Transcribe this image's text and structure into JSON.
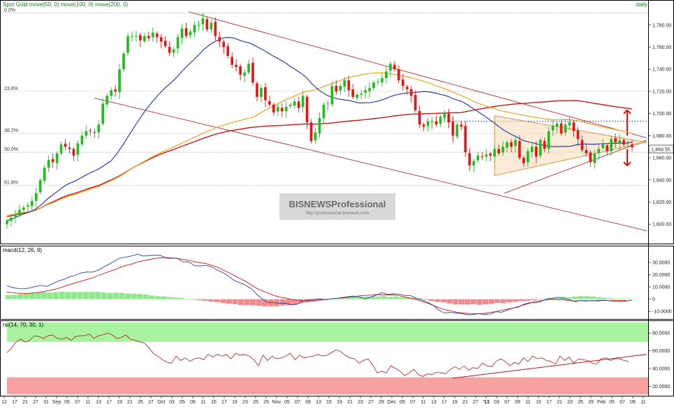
{
  "panels": {
    "price": {
      "title": "Spot Gold move(50, 0) move(100, 0) move(200, 0)",
      "period": "daily"
    },
    "macd": {
      "title": "macd(12, 26, 9)"
    },
    "rsi": {
      "title": "rsi(14, 70, 30, 1)"
    }
  },
  "watermark": {
    "title": "BISNEWSProfessional",
    "url": "http://professional.bisnews.com"
  },
  "last_price_label": "1,669.55",
  "colors": {
    "up": "#22bb22",
    "down": "#e01818",
    "ma50": "#2a3f9e",
    "ma100": "#e8a420",
    "ma200": "#c81818",
    "macd_line": "#2a3f9e",
    "signal_line": "#c81818",
    "hist_pos": "#8ee88e",
    "hist_neg": "#f08a8a",
    "rsi_line": "#b01818",
    "rsi_ob": "#a8f2a0",
    "rsi_os": "#f7a0a0",
    "channel": "#b03030",
    "triangle_fill": "#f5d9b8"
  },
  "chart_data": [
    {
      "type": "candlestick",
      "title": "Spot Gold move(50, 0) move(100, 0) move(200, 0)",
      "period": "daily",
      "ylim": [
        1585,
        1795
      ],
      "y_ticks": [
        "1,600.00",
        "1,620.00",
        "1,640.00",
        "1,660.00",
        "1,680.00",
        "1,700.00",
        "1,720.00",
        "1,740.00",
        "1,760.00",
        "1,780.00"
      ],
      "last_price": 1669.55,
      "fibonacci": [
        {
          "label": "0.0%",
          "value": 1791
        },
        {
          "label": "23.6%",
          "value": 1720
        },
        {
          "label": "38.2%",
          "value": 1682
        },
        {
          "label": "50.0%",
          "value": 1665
        },
        {
          "label": "61.8%",
          "value": 1635
        }
      ],
      "x_ticks": [
        "12",
        "17",
        "21",
        "27",
        "31",
        "Sep",
        "05",
        "07",
        "11",
        "13",
        "17",
        "19",
        "21",
        "25",
        "27",
        "Oct",
        "03",
        "05",
        "09",
        "11",
        "15",
        "17",
        "19",
        "23",
        "25",
        "29",
        "Nov",
        "05",
        "07",
        "09",
        "13",
        "15",
        "19",
        "21",
        "23",
        "27",
        "29",
        "Dec",
        "05",
        "07",
        "11",
        "13",
        "17",
        "19",
        "21",
        "27",
        "'13",
        "03",
        "07",
        "09",
        "11",
        "15",
        "17",
        "21",
        "23",
        "25",
        "29",
        "Feb",
        "05",
        "07",
        "09",
        "11"
      ],
      "close": [
        1603,
        1606,
        1609,
        1613,
        1615,
        1617,
        1621,
        1628,
        1640,
        1651,
        1658,
        1656,
        1664,
        1672,
        1670,
        1668,
        1662,
        1673,
        1680,
        1684,
        1684,
        1683,
        1690,
        1709,
        1716,
        1721,
        1720,
        1740,
        1754,
        1770,
        1770,
        1770,
        1766,
        1770,
        1768,
        1773,
        1769,
        1765,
        1761,
        1755,
        1758,
        1769,
        1777,
        1770,
        1774,
        1780,
        1780,
        1786,
        1776,
        1782,
        1770,
        1765,
        1760,
        1752,
        1744,
        1742,
        1735,
        1737,
        1745,
        1728,
        1715,
        1723,
        1712,
        1708,
        1701,
        1706,
        1702,
        1706,
        1708,
        1711,
        1705,
        1716,
        1692,
        1675,
        1683,
        1696,
        1708,
        1709,
        1725,
        1720,
        1725,
        1730,
        1721,
        1715,
        1717,
        1718,
        1721,
        1723,
        1728,
        1729,
        1732,
        1738,
        1745,
        1740,
        1730,
        1725,
        1722,
        1716,
        1703,
        1690,
        1688,
        1693,
        1693,
        1690,
        1697,
        1700,
        1692,
        1680,
        1690,
        1688,
        1665,
        1653,
        1657,
        1662,
        1661,
        1663,
        1662,
        1668,
        1664,
        1670,
        1674,
        1670,
        1676,
        1660,
        1655,
        1666,
        1670,
        1661,
        1676,
        1668,
        1684,
        1689,
        1691,
        1682,
        1690,
        1692,
        1684,
        1677,
        1667,
        1664,
        1656,
        1664,
        1668,
        1672,
        1666,
        1677,
        1674,
        1676,
        1672,
        1673,
        1669.55
      ]
    },
    {
      "type": "line",
      "title": "macd(12, 26, 9)",
      "y_ticks": [
        "30.0000",
        "20.0000",
        "10.0000",
        "0",
        "-10.0000"
      ],
      "ylim": [
        -15,
        38
      ],
      "series": [
        {
          "values": [
            10.9,
            9.5,
            8.7,
            8.4,
            9.2,
            10.4,
            11.3,
            10.5,
            12.5,
            14.7,
            16.2,
            18.2,
            19.5,
            21.4,
            22.2,
            22.1,
            23.6,
            26.2,
            28.7,
            31.4,
            33.8,
            34.4,
            35.4,
            36.8,
            35.2,
            35.7,
            35.9,
            35.7,
            33.6,
            33.4,
            33.3,
            30.4,
            30.5,
            27.4,
            27.1,
            27.6,
            26.4,
            23.7,
            21.6,
            18.8,
            15.2,
            13.4,
            11.4,
            8.6,
            3.7,
            -0.1,
            -2.8,
            -2.8,
            -3.4,
            -3.2,
            -4.6,
            -4.2,
            -1.8,
            -0.6,
            -0.2,
            0.5,
            -0.4,
            0.2,
            0.7,
            1.4,
            2.0,
            2.6,
            1.8,
            0.2,
            1.7,
            3.4,
            5.3,
            3.9,
            4.3,
            4.2,
            3.0,
            2.9,
            0.8,
            -0.7,
            -2.6,
            -4.9,
            -9.0,
            -11.2,
            -10.8,
            -11.3,
            -11.7,
            -12.8,
            -12.6,
            -11.8,
            -12.5,
            -12.2,
            -10.2,
            -10.8,
            -9.1,
            -7.3,
            -6.4,
            -4.0,
            -2.8,
            -3.0,
            -1.9,
            0.3,
            0.8,
            1.6,
            0.5,
            -0.4,
            -2.0,
            -1.1,
            -1.2,
            -1.3,
            -1.0,
            -0.8,
            -1.2,
            -1.8,
            -1.9,
            -1.6,
            -0.8
          ]
        },
        {
          "values": [
            5.8,
            5.3,
            4.9,
            4.7,
            4.9,
            5.3,
            5.8,
            6.7,
            7.6,
            8.8,
            10.4,
            11.9,
            13.3,
            14.7,
            16.0,
            17.5,
            19.2,
            20.9,
            22.6,
            24.2,
            26.1,
            27.7,
            28.7,
            30.4,
            31.4,
            32.3,
            33.3,
            33.7,
            34.0,
            33.8,
            33.3,
            32.5,
            31.8,
            30.6,
            29.8,
            29.1,
            27.7,
            26.2,
            24.0,
            21.7,
            19.3,
            16.9,
            14.5,
            11.5,
            8.7,
            6.7,
            4.9,
            3.0,
            1.7,
            0.9,
            -0.2,
            -0.7,
            -1.2,
            -1.4,
            -1.3,
            -0.6,
            -0.3,
            0.3,
            0.6,
            1.1,
            1.6,
            2.0,
            2.8,
            3.1,
            3.3,
            3.9,
            3.4,
            3.6,
            3.6,
            3.0,
            1.8,
            0.8,
            -0.3,
            -1.8,
            -3.3,
            -5.0,
            -6.9,
            -8.5,
            -9.4,
            -10.5,
            -11.2,
            -11.6,
            -11.9,
            -11.8,
            -11.5,
            -10.8,
            -10.2,
            -9.2,
            -8.2,
            -7.3,
            -6.0,
            -4.6,
            -3.3,
            -1.9,
            -1.2,
            -0.4,
            -0.2,
            -0.4,
            -0.6,
            -1.2,
            -1.4,
            -1.2,
            -1.5,
            -1.1,
            -1.5,
            -1.0,
            -1.2,
            -1.0,
            -1.0,
            -1.1
          ]
        }
      ],
      "histogram": [
        3.4,
        3.6,
        4.2,
        4.7,
        5.1,
        5.2,
        5.6,
        5.4,
        5.8,
        6.1,
        5.8,
        5.9,
        5.9,
        6.0,
        5.9,
        6.0,
        5.6,
        5.2,
        5.3,
        5.2,
        4.7,
        4.5,
        4.3,
        3.8,
        3.0,
        2.4,
        2.3,
        1.8,
        1.4,
        1.1,
        0.4,
        -0.4,
        -0.9,
        -1.3,
        -2.0,
        -2.5,
        -3.2,
        -3.7,
        -4.1,
        -4.7,
        -4.8,
        -5.0,
        -5.4,
        -5.8,
        -5.8,
        -5.7,
        -5.2,
        -5.0,
        -4.3,
        -3.4,
        -2.7,
        -2.0,
        -1.3,
        -0.8,
        0.2,
        0.8,
        1.1,
        1.8,
        2.2,
        2.2,
        2.2,
        2.4,
        2.2,
        2.5,
        1.9,
        2.2,
        1.6,
        1.5,
        1.2,
        0.9,
        -0.6,
        -1.5,
        -2.3,
        -2.7,
        -3.5,
        -4.3,
        -4.3,
        -4.4,
        -4.0,
        -4.6,
        -4.2,
        -3.9,
        -3.1,
        -3.3,
        -2.5,
        -2.2,
        -1.6,
        -1.3,
        -0.9,
        -0.2,
        0.5,
        1.1,
        1.3,
        2.0,
        1.5,
        2.1,
        2.5,
        2.5,
        2.2,
        1.6,
        1.2,
        0.9,
        0.5,
        0.5,
        0.4
      ]
    },
    {
      "type": "line",
      "title": "rsi(14, 70, 30, 1)",
      "y_ticks": [
        "80.0000",
        "60.0000",
        "40.0000",
        "20.0000"
      ],
      "ylim": [
        10,
        92
      ],
      "overbought": 70,
      "oversold": 30,
      "series": [
        {
          "values": [
            58,
            63,
            70,
            73,
            70,
            72,
            77,
            76,
            74,
            77,
            78,
            74,
            73,
            75,
            72,
            76,
            77,
            77,
            79,
            74,
            77,
            78,
            80,
            78,
            74,
            75,
            78,
            73,
            72,
            70,
            69,
            64,
            57,
            54,
            50,
            47,
            46,
            54,
            49,
            52,
            48,
            51,
            52,
            50,
            56,
            53,
            56,
            54,
            56,
            51,
            57,
            55,
            56,
            54,
            50,
            43,
            55,
            49,
            54,
            51,
            52,
            54,
            57,
            50,
            55,
            52,
            53,
            54,
            56,
            54,
            55,
            58,
            61,
            59,
            55,
            52,
            51,
            46,
            49,
            51,
            44,
            35,
            37,
            35,
            43,
            40,
            37,
            32,
            35,
            39,
            33,
            31,
            34,
            33,
            36,
            35,
            34,
            39,
            42,
            39,
            43,
            38,
            41,
            40,
            46,
            43,
            42,
            48,
            51,
            48,
            43,
            47,
            45,
            52,
            48,
            54,
            51,
            52,
            49,
            48,
            45,
            54,
            49,
            53,
            46,
            51,
            50,
            49,
            46,
            45,
            51,
            52,
            49,
            51,
            51,
            49,
            48
          ]
        }
      ]
    }
  ]
}
